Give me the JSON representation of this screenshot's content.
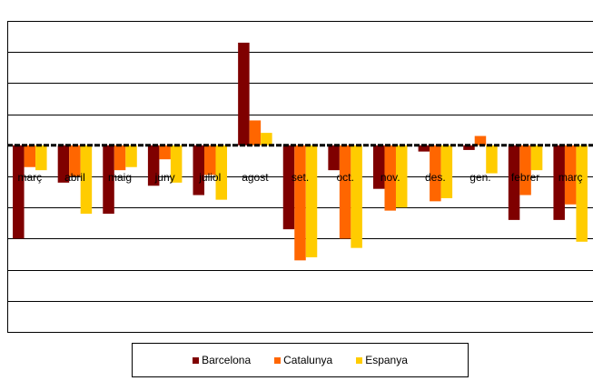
{
  "chart_data": {
    "type": "bar",
    "categories": [
      "març",
      "abril",
      "maig",
      "juny",
      "juliol",
      "agost",
      "set.",
      "oct.",
      "nov.",
      "des.",
      "gen.",
      "febrer",
      "març"
    ],
    "series": [
      {
        "name": "Barcelona",
        "color": "#7f0000",
        "values": [
          -3.0,
          -1.2,
          -2.2,
          -1.3,
          -1.6,
          3.3,
          -2.7,
          -0.8,
          -1.4,
          -0.2,
          -0.15,
          -2.4,
          -2.4
        ]
      },
      {
        "name": "Catalunya",
        "color": "#ff6600",
        "values": [
          -0.7,
          -1.0,
          -0.8,
          -0.45,
          -0.95,
          0.8,
          -3.7,
          -3.0,
          -2.1,
          -1.8,
          0.3,
          -1.6,
          -1.9
        ]
      },
      {
        "name": "Espanya",
        "color": "#ffcc00",
        "values": [
          -0.8,
          -2.2,
          -0.7,
          -1.2,
          -1.75,
          0.4,
          -3.6,
          -3.3,
          -2.0,
          -1.7,
          -0.9,
          -0.8,
          -3.1
        ]
      }
    ],
    "ylim": [
      -6,
      4
    ],
    "grid": true,
    "legend": "bottom"
  },
  "legend": {
    "items": [
      {
        "label": "Barcelona",
        "color": "#7f0000"
      },
      {
        "label": "Catalunya",
        "color": "#ff6600"
      },
      {
        "label": "Espanya",
        "color": "#ffcc00"
      }
    ]
  }
}
